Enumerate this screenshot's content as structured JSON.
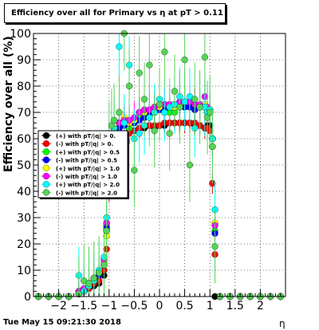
{
  "title": "Efficiency over all for Primary vs   η at pT > 0.11",
  "footer_timestamp": "Tue May 15 09:21:30 2018",
  "chart_data": {
    "type": "scatter",
    "xlabel": "η",
    "ylabel": "Efficiency over all (%)",
    "xlim": [
      -2.5,
      2.5
    ],
    "ylim": [
      0,
      100
    ],
    "x_ticks": [
      -2,
      -1.5,
      -1,
      -0.5,
      0,
      0.5,
      1,
      1.5,
      2
    ],
    "y_ticks": [
      0,
      10,
      20,
      30,
      40,
      50,
      60,
      70,
      80,
      90,
      100
    ],
    "x_tick_labels": [
      "−2",
      "−1.5",
      "−1",
      "−0.5",
      "0",
      "0.5",
      "1",
      "1.5",
      "2"
    ],
    "y_tick_labels": [
      "0",
      "10",
      "20",
      "30",
      "40",
      "50",
      "60",
      "70",
      "80",
      "90",
      "100"
    ],
    "grid": true,
    "legend_position": "left-middle",
    "series": [
      {
        "name": "(+) with pT/|q| > 0.",
        "color": "#000000",
        "marker": "circle",
        "error": 3,
        "x": [
          -2.4,
          -2.2,
          -2.0,
          -1.8,
          -1.6,
          -1.5,
          -1.4,
          -1.3,
          -1.2,
          -1.1,
          -1.05,
          -1.0,
          -0.95,
          -0.9,
          -0.8,
          -0.7,
          -0.6,
          -0.5,
          -0.4,
          -0.3,
          -0.2,
          -0.1,
          0.0,
          0.1,
          0.2,
          0.3,
          0.4,
          0.5,
          0.6,
          0.7,
          0.8,
          0.9,
          0.95,
          1.0,
          1.05,
          1.1,
          1.2,
          1.4,
          1.6,
          1.8,
          2.0,
          2.2,
          2.4
        ],
        "y": [
          0,
          0,
          0,
          0,
          1,
          2,
          3,
          4,
          5,
          8,
          25,
          47,
          55,
          60,
          62,
          62,
          63,
          63,
          64,
          64,
          65,
          64,
          65,
          65,
          66,
          66,
          66,
          66,
          66,
          65,
          65,
          64,
          65,
          65,
          57,
          0,
          0,
          0,
          0,
          0,
          0,
          0,
          0
        ]
      },
      {
        "name": "(-) with pT/|q| > 0.",
        "color": "#ff0000",
        "marker": "circle",
        "error": 4,
        "x": [
          -2.4,
          -2.2,
          -2.0,
          -1.8,
          -1.6,
          -1.5,
          -1.4,
          -1.3,
          -1.2,
          -1.1,
          -1.05,
          -1.0,
          -0.95,
          -0.9,
          -0.8,
          -0.7,
          -0.6,
          -0.5,
          -0.4,
          -0.3,
          -0.2,
          -0.1,
          0.0,
          0.1,
          0.2,
          0.3,
          0.4,
          0.5,
          0.6,
          0.7,
          0.8,
          0.9,
          0.95,
          1.0,
          1.05,
          1.1,
          1.2,
          1.4,
          1.6,
          1.8,
          2.0,
          2.2,
          2.4
        ],
        "y": [
          0,
          0,
          0,
          0,
          1,
          2,
          3,
          5,
          6,
          10,
          18,
          40,
          52,
          57,
          60,
          61,
          62,
          63,
          64,
          65,
          65,
          65,
          65,
          66,
          66,
          66,
          66,
          66,
          66,
          66,
          65,
          64,
          64,
          63,
          43,
          16,
          0,
          0,
          0,
          0,
          0,
          0,
          0
        ]
      },
      {
        "name": "(+) with pT/|q| > 0.5",
        "color": "#00ff00",
        "marker": "circle",
        "error": 4,
        "x": [
          -2.4,
          -2.2,
          -2.0,
          -1.8,
          -1.6,
          -1.5,
          -1.4,
          -1.3,
          -1.2,
          -1.1,
          -1.05,
          -1.0,
          -0.95,
          -0.9,
          -0.8,
          -0.7,
          -0.6,
          -0.5,
          -0.4,
          -0.3,
          -0.2,
          -0.1,
          0.0,
          0.1,
          0.2,
          0.3,
          0.4,
          0.5,
          0.6,
          0.7,
          0.8,
          0.9,
          0.95,
          1.0,
          1.05,
          1.1,
          1.2,
          1.4,
          1.6,
          1.8,
          2.0,
          2.2,
          2.4
        ],
        "y": [
          0,
          0,
          0,
          0,
          1,
          2,
          4,
          6,
          8,
          12,
          27,
          50,
          58,
          62,
          64,
          66,
          64,
          66,
          68,
          70,
          69,
          70,
          71,
          70,
          70,
          70,
          72,
          72,
          72,
          72,
          72,
          72,
          70,
          70,
          60,
          25,
          0,
          0,
          0,
          0,
          0,
          0,
          0
        ]
      },
      {
        "name": "(-) with pT/|q| > 0.5",
        "color": "#0000ff",
        "marker": "circle",
        "error": 4,
        "x": [
          -2.4,
          -2.2,
          -2.0,
          -1.8,
          -1.6,
          -1.5,
          -1.4,
          -1.3,
          -1.2,
          -1.1,
          -1.05,
          -1.0,
          -0.95,
          -0.9,
          -0.8,
          -0.7,
          -0.6,
          -0.5,
          -0.4,
          -0.3,
          -0.2,
          -0.1,
          0.0,
          0.1,
          0.2,
          0.3,
          0.4,
          0.5,
          0.6,
          0.7,
          0.8,
          0.9,
          0.95,
          1.0,
          1.05,
          1.1,
          1.2,
          1.4,
          1.6,
          1.8,
          2.0,
          2.2,
          2.4
        ],
        "y": [
          0,
          0,
          0,
          0,
          2,
          2,
          4,
          6,
          8,
          12,
          26,
          52,
          58,
          62,
          64,
          65,
          66,
          66,
          67,
          68,
          70,
          70,
          71,
          71,
          72,
          72,
          72,
          72,
          72,
          71,
          72,
          72,
          70,
          70,
          60,
          24,
          0,
          0,
          0,
          0,
          0,
          0,
          0
        ]
      },
      {
        "name": "(+) with pT/|q| > 1.0",
        "color": "#ffff00",
        "marker": "circle",
        "error": 6,
        "x": [
          -2.4,
          -2.2,
          -2.0,
          -1.8,
          -1.6,
          -1.5,
          -1.4,
          -1.3,
          -1.2,
          -1.1,
          -1.05,
          -1.0,
          -0.95,
          -0.9,
          -0.8,
          -0.7,
          -0.6,
          -0.5,
          -0.4,
          -0.3,
          -0.2,
          -0.1,
          0.0,
          0.1,
          0.2,
          0.3,
          0.4,
          0.5,
          0.6,
          0.7,
          0.8,
          0.9,
          0.95,
          1.0,
          1.05,
          1.1,
          1.2,
          1.4,
          1.6,
          1.8,
          2.0,
          2.2,
          2.4
        ],
        "y": [
          0,
          0,
          0,
          0,
          2,
          3,
          5,
          7,
          9,
          13,
          23,
          52,
          58,
          63,
          66,
          68,
          66,
          67,
          70,
          70,
          71,
          72,
          72,
          73,
          73,
          72,
          73,
          74,
          74,
          73,
          72,
          73,
          70,
          71,
          60,
          28,
          0,
          0,
          0,
          0,
          0,
          0,
          0
        ]
      },
      {
        "name": "(-) with pT/|q| > 1.0",
        "color": "#ff00ff",
        "marker": "circle",
        "error": 6,
        "x": [
          -2.4,
          -2.2,
          -2.0,
          -1.8,
          -1.6,
          -1.5,
          -1.4,
          -1.3,
          -1.2,
          -1.1,
          -1.05,
          -1.0,
          -0.95,
          -0.9,
          -0.8,
          -0.7,
          -0.6,
          -0.5,
          -0.4,
          -0.3,
          -0.2,
          -0.1,
          0.0,
          0.1,
          0.2,
          0.3,
          0.4,
          0.5,
          0.6,
          0.7,
          0.8,
          0.9,
          0.95,
          1.0,
          1.05,
          1.1,
          1.2,
          1.4,
          1.6,
          1.8,
          2.0,
          2.2,
          2.4
        ],
        "y": [
          0,
          0,
          0,
          0,
          2,
          3,
          5,
          7,
          9,
          14,
          28,
          53,
          60,
          63,
          66,
          67,
          67,
          68,
          70,
          71,
          71,
          72,
          73,
          73,
          73,
          73,
          74,
          74,
          74,
          73,
          73,
          76,
          72,
          71,
          60,
          27,
          0,
          0,
          0,
          0,
          0,
          0,
          0
        ]
      },
      {
        "name": "(+) with pT/|q| > 2.0",
        "color": "#00ffff",
        "marker": "circle",
        "error": 11,
        "x": [
          -2.4,
          -2.2,
          -2.0,
          -1.8,
          -1.6,
          -1.5,
          -1.4,
          -1.3,
          -1.2,
          -1.1,
          -1.05,
          -1.0,
          -0.95,
          -0.9,
          -0.8,
          -0.7,
          -0.6,
          -0.5,
          -0.4,
          -0.3,
          -0.2,
          -0.1,
          0.0,
          0.1,
          0.2,
          0.3,
          0.4,
          0.5,
          0.6,
          0.7,
          0.8,
          0.9,
          0.95,
          1.0,
          1.05,
          1.1,
          1.2,
          1.4,
          1.6,
          1.8,
          2.0,
          2.2,
          2.4
        ],
        "y": [
          0,
          0,
          0,
          0,
          8,
          2,
          4,
          6,
          10,
          15,
          30,
          55,
          60,
          64,
          95,
          66,
          88,
          60,
          62,
          65,
          68,
          70,
          75,
          70,
          72,
          73,
          76,
          74,
          76,
          64,
          72,
          72,
          70,
          71,
          60,
          33,
          0,
          0,
          0,
          0,
          0,
          0,
          0
        ]
      },
      {
        "name": "(-) with pT/|q| > 2.0",
        "color": "#55d455",
        "marker": "circle",
        "error": 14,
        "x": [
          -2.4,
          -2.2,
          -2.0,
          -1.8,
          -1.6,
          -1.5,
          -1.4,
          -1.3,
          -1.2,
          -1.1,
          -1.05,
          -1.0,
          -0.95,
          -0.9,
          -0.8,
          -0.7,
          -0.6,
          -0.5,
          -0.4,
          -0.3,
          -0.2,
          -0.1,
          0.0,
          0.1,
          0.2,
          0.3,
          0.4,
          0.5,
          0.6,
          0.7,
          0.8,
          0.9,
          0.95,
          1.0,
          1.05,
          1.1,
          1.2,
          1.4,
          1.6,
          1.8,
          2.0,
          2.2,
          2.4
        ],
        "y": [
          0,
          0,
          0,
          0,
          1,
          6,
          5,
          7,
          9,
          12,
          25,
          60,
          65,
          67,
          70,
          100,
          80,
          48,
          85,
          75,
          88,
          63,
          73,
          93,
          62,
          78,
          72,
          90,
          50,
          75,
          72,
          91,
          68,
          70,
          57,
          19,
          0,
          0,
          0,
          0,
          0,
          0,
          0
        ]
      }
    ]
  }
}
